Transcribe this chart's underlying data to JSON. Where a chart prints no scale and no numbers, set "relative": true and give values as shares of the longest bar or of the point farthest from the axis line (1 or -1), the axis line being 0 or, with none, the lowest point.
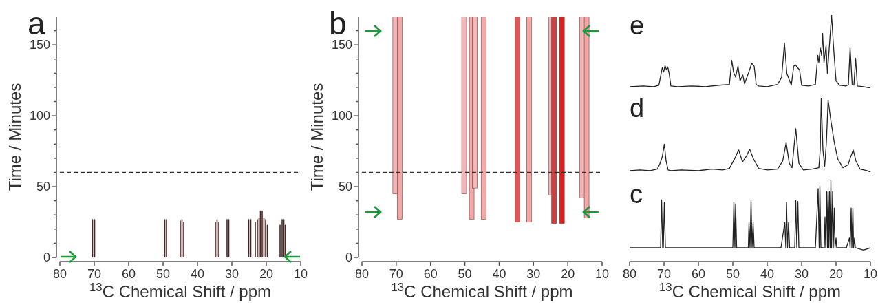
{
  "chart_data": [
    {
      "type": "bar",
      "title": "a",
      "xlabel": "$^{13}$C Chemical Shift / ppm",
      "ylabel": "Time / Minutes",
      "x": [
        70.5,
        69.9,
        49.5,
        49.0,
        45.0,
        44.5,
        44.0,
        34.8,
        34.3,
        33.8,
        31.4,
        30.9,
        25.1,
        24.5,
        23.2,
        22.6,
        22.1,
        21.7,
        21.2,
        20.7,
        20.2,
        19.7,
        16.0,
        15.4,
        14.9,
        14.5
      ],
      "values": [
        27,
        27,
        27,
        27,
        26,
        27,
        25,
        25,
        27,
        25,
        27,
        27,
        27,
        27,
        25,
        27,
        28,
        33,
        33,
        28,
        27,
        23,
        23,
        27,
        27,
        23
      ],
      "color": "#4a2626",
      "xlim": [
        80,
        10
      ],
      "xticks": [
        80,
        70,
        60,
        50,
        40,
        30,
        20,
        10
      ],
      "ylim": [
        0,
        170
      ],
      "yticks": [
        0,
        {
          "value": 10,
          "label": null
        },
        {
          "value": 20,
          "label": null
        },
        {
          "value": 30,
          "label": null
        },
        {
          "value": 40,
          "label": null
        },
        50,
        {
          "value": 60,
          "label": null
        },
        {
          "value": 70,
          "label": null
        },
        {
          "value": 80,
          "label": null
        },
        {
          "value": 90,
          "label": null
        },
        100,
        {
          "value": 110,
          "label": null
        },
        {
          "value": 120,
          "label": null
        },
        {
          "value": 130,
          "label": null
        },
        {
          "value": 140,
          "label": null
        },
        150,
        {
          "value": 160,
          "label": null
        }
      ],
      "ref_lines": [
        {
          "axis": "y",
          "value": 60,
          "line_style": "dashed",
          "color": "#333333"
        }
      ]
    },
    {
      "type": "bar",
      "title": "b",
      "xlabel": "$^{13}$C Chemical Shift / ppm",
      "ylabel": "Time / Minutes",
      "x": [
        70.3,
        69.0,
        50.2,
        48.0,
        47.1,
        44.5,
        34.7,
        31.3,
        24.8,
        24.0,
        21.7,
        15.8,
        14.5
      ],
      "base": [
        45,
        27,
        45,
        27,
        49,
        27,
        25,
        25,
        44,
        24,
        24,
        42,
        28
      ],
      "values": [
        125,
        143,
        125,
        143,
        121,
        143,
        145,
        145,
        126,
        146,
        146,
        128,
        142
      ],
      "colors": [
        "#f3b6b6",
        "#f3a8a8",
        "#f3b6b6",
        "#f3a8a8",
        "#f3b6b6",
        "#f3a8a8",
        "#e05555",
        "#f3a8a8",
        "#f3b6b6",
        "#c84040",
        "#d42020",
        "#f3b6b6",
        "#f3a8a8"
      ],
      "xlim": [
        80,
        10
      ],
      "xticks": [
        80,
        70,
        60,
        50,
        40,
        30,
        20,
        10
      ],
      "ylim": [
        0,
        170
      ],
      "yticks": [
        0,
        {
          "value": 10,
          "label": null
        },
        {
          "value": 20,
          "label": null
        },
        {
          "value": 30,
          "label": null
        },
        {
          "value": 40,
          "label": null
        },
        50,
        {
          "value": 60,
          "label": null
        },
        {
          "value": 70,
          "label": null
        },
        {
          "value": 80,
          "label": null
        },
        {
          "value": 90,
          "label": null
        },
        100,
        {
          "value": 110,
          "label": null
        },
        {
          "value": 120,
          "label": null
        },
        {
          "value": 130,
          "label": null
        },
        {
          "value": 140,
          "label": null
        },
        150,
        {
          "value": 160,
          "label": null
        }
      ],
      "ref_lines": [
        {
          "axis": "y",
          "value": 60,
          "line_style": "dashed",
          "color": "#333333"
        }
      ]
    },
    {
      "type": "line",
      "title": "e",
      "relative": true,
      "tick_labels": false,
      "xlim": [
        80,
        10
      ],
      "color": "#222222",
      "x": [
        80,
        76,
        73,
        71.5,
        70.5,
        70.1,
        69.7,
        69.3,
        68.9,
        68.5,
        68,
        66,
        62,
        58,
        54,
        51,
        50.3,
        49.8,
        49.2,
        48.5,
        47.9,
        47.1,
        46.6,
        45.5,
        44.5,
        43.8,
        43.2,
        42.5,
        40,
        37,
        35.8,
        35,
        34.3,
        33,
        32.3,
        31.8,
        31.2,
        30.6,
        30,
        28,
        26,
        25.3,
        25,
        24.6,
        24.2,
        23.9,
        23.5,
        22.9,
        22.5,
        21.9,
        21.3,
        20.7,
        20,
        19,
        17,
        16.4,
        15.9,
        15.3,
        14.8,
        14.3,
        13.8,
        12,
        10
      ],
      "values": [
        0.02,
        0.03,
        0.02,
        0.04,
        0.28,
        0.22,
        0.31,
        0.25,
        0.29,
        0.2,
        0.03,
        0.02,
        0.03,
        0.02,
        0.04,
        0.05,
        0.38,
        0.22,
        0.15,
        0.3,
        0.1,
        0.18,
        0.06,
        0.2,
        0.34,
        0.3,
        0.05,
        0.03,
        0.02,
        0.05,
        0.15,
        0.62,
        0.2,
        0.04,
        0.3,
        0.32,
        0.28,
        0.25,
        0.04,
        0.03,
        0.05,
        0.45,
        0.35,
        0.55,
        0.45,
        0.75,
        0.35,
        0.58,
        0.2,
        0.6,
        1.0,
        0.55,
        0.1,
        0.04,
        0.03,
        0.05,
        0.55,
        0.05,
        0.04,
        0.41,
        0.03,
        0.02,
        0
      ]
    },
    {
      "type": "line",
      "title": "d",
      "relative": true,
      "tick_labels": false,
      "xlim": [
        80,
        10
      ],
      "color": "#222222",
      "x": [
        80,
        77,
        74,
        72,
        71.3,
        70.5,
        69.9,
        69.4,
        68.8,
        68,
        65,
        60,
        56,
        53,
        51,
        49.5,
        48.3,
        47.2,
        46,
        45.1,
        44,
        42.5,
        40,
        37,
        35.5,
        34.5,
        33.6,
        32.8,
        31.7,
        30.8,
        29.5,
        27,
        25,
        24.6,
        24.3,
        23.8,
        23.3,
        22.8,
        22.3,
        21.5,
        20.5,
        19.5,
        18,
        16.5,
        15.8,
        15,
        14.2,
        13,
        11,
        10
      ],
      "values": [
        0.02,
        0.03,
        0.02,
        0.04,
        0.1,
        0.21,
        0.38,
        0.15,
        0.03,
        0.02,
        0.03,
        0.02,
        0.04,
        0.03,
        0.05,
        0.18,
        0.3,
        0.14,
        0.22,
        0.31,
        0.18,
        0.05,
        0.03,
        0.04,
        0.15,
        0.4,
        0.12,
        0.06,
        0.59,
        0.12,
        0.03,
        0.04,
        0.06,
        0.3,
        1.0,
        0.3,
        0.08,
        0.4,
        0.98,
        0.7,
        0.4,
        0.18,
        0.06,
        0.1,
        0.2,
        0.3,
        0.15,
        0.04,
        0.02,
        0
      ]
    },
    {
      "type": "line",
      "title": "c",
      "relative": true,
      "tick_labels": "x",
      "xlabel": "$^{13}$C Chemical Shift / ppm",
      "xlim": [
        80,
        10
      ],
      "xticks": [
        80,
        70,
        60,
        50,
        40,
        30,
        20,
        10
      ],
      "color": "#222222",
      "x": [
        80,
        75,
        71,
        70.7,
        70.4,
        70.2,
        69.9,
        69.6,
        60,
        50,
        49.7,
        49.4,
        49.2,
        48.9,
        45.5,
        45.3,
        45.0,
        44.7,
        44.4,
        44.1,
        43.8,
        36,
        34.9,
        34.6,
        34.4,
        34.1,
        33.8,
        33.5,
        32,
        31.7,
        31.4,
        31.1,
        30.8,
        26,
        25.2,
        24.9,
        24.7,
        24.4,
        23.4,
        23.2,
        23.0,
        22.7,
        22.5,
        22.3,
        22.1,
        21.9,
        21.7,
        21.5,
        21.3,
        21.0,
        20.8,
        20.5,
        20.3,
        20.0,
        19.8,
        17,
        16.1,
        15.9,
        15.6,
        15.4,
        15.1,
        14.9,
        14.6,
        14.4,
        12,
        10
      ],
      "values": [
        0.17,
        0.17,
        0.17,
        0.76,
        0.17,
        0.17,
        0.73,
        0.17,
        0.17,
        0.17,
        0.73,
        0.17,
        0.71,
        0.17,
        0.17,
        0.48,
        0.17,
        0.75,
        0.17,
        0.48,
        0.17,
        0.17,
        0.48,
        0.17,
        0.73,
        0.17,
        0.48,
        0.17,
        0.17,
        0.75,
        0.17,
        0.74,
        0.17,
        0.17,
        0.9,
        0.17,
        0.93,
        0.17,
        0.17,
        0.55,
        0.17,
        0.86,
        0.17,
        0.86,
        0.17,
        0.86,
        0.17,
        1.0,
        0.17,
        0.86,
        0.17,
        0.66,
        0.17,
        0.29,
        0.17,
        0.17,
        0.29,
        0.17,
        0.66,
        0.17,
        0.66,
        0.17,
        0.29,
        0.17,
        0.14,
        0.17
      ]
    }
  ]
}
